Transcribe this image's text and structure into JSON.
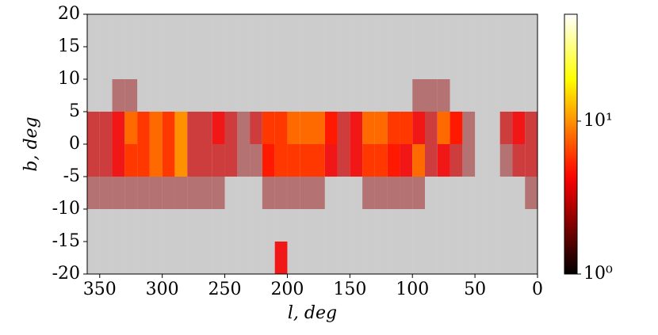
{
  "chart_data": {
    "type": "hist2d",
    "xlabel": "l, deg",
    "ylabel": "b, deg",
    "xlim": [
      360,
      0
    ],
    "ylim": [
      -20,
      20
    ],
    "xticks": [
      350,
      300,
      250,
      200,
      150,
      100,
      50,
      0
    ],
    "yticks": [
      20,
      15,
      10,
      5,
      0,
      -5,
      -10,
      -15,
      -20
    ],
    "xbins": [
      360,
      350,
      340,
      330,
      320,
      310,
      300,
      290,
      280,
      270,
      260,
      250,
      240,
      230,
      220,
      210,
      200,
      190,
      180,
      170,
      160,
      150,
      140,
      130,
      120,
      110,
      100,
      90,
      80,
      70,
      60,
      50,
      40,
      30,
      20,
      10,
      0
    ],
    "ybins": [
      20,
      15,
      10,
      5,
      0,
      -5,
      -10,
      -15,
      -20
    ],
    "counts": [
      [
        1,
        1,
        1,
        1,
        1,
        1,
        1,
        1,
        1,
        1,
        1,
        1,
        1,
        1,
        1,
        1,
        1,
        1,
        1,
        1,
        1,
        1,
        1,
        1,
        1,
        1,
        1,
        1,
        1,
        1,
        1,
        1,
        1,
        1,
        1,
        1
      ],
      [
        1,
        1,
        1,
        1,
        1,
        1,
        1,
        1,
        1,
        1,
        1,
        1,
        1,
        1,
        1,
        1,
        1,
        1,
        1,
        1,
        1,
        1,
        1,
        1,
        1,
        1,
        1,
        1,
        1,
        1,
        1,
        1,
        1,
        1,
        1,
        1
      ],
      [
        1,
        1,
        2,
        2,
        1,
        1,
        1,
        1,
        1,
        1,
        1,
        1,
        1,
        1,
        1,
        1,
        1,
        1,
        1,
        1,
        1,
        1,
        1,
        1,
        1,
        1,
        2,
        2,
        2,
        1,
        1,
        1,
        1,
        1,
        1,
        1
      ],
      [
        3,
        3,
        4,
        8,
        6,
        8,
        6,
        10,
        3,
        3,
        4,
        3,
        2,
        3,
        6,
        6,
        8,
        8,
        8,
        5,
        3,
        4,
        8,
        8,
        6,
        6,
        4,
        3,
        8,
        5,
        2,
        1,
        1,
        3,
        4,
        3
      ],
      [
        3,
        3,
        4,
        6,
        6,
        8,
        6,
        10,
        3,
        3,
        3,
        3,
        2,
        2,
        5,
        6,
        6,
        6,
        6,
        4,
        3,
        4,
        6,
        6,
        5,
        4,
        8,
        3,
        4,
        3,
        2,
        1,
        1,
        2,
        3,
        3
      ],
      [
        2,
        2,
        2,
        2,
        2,
        2,
        2,
        2,
        2,
        2,
        2,
        1,
        1,
        1,
        2,
        2,
        2,
        2,
        2,
        1,
        1,
        1,
        2,
        2,
        2,
        2,
        2,
        1,
        1,
        1,
        1,
        1,
        1,
        1,
        1,
        2
      ],
      [
        1,
        1,
        1,
        1,
        1,
        1,
        1,
        1,
        1,
        1,
        1,
        1,
        1,
        1,
        1,
        1,
        1,
        1,
        1,
        1,
        1,
        1,
        1,
        1,
        1,
        1,
        1,
        1,
        1,
        1,
        1,
        1,
        1,
        1,
        1,
        1
      ],
      [
        1,
        1,
        1,
        1,
        1,
        1,
        1,
        1,
        1,
        1,
        1,
        1,
        1,
        1,
        1,
        4,
        1,
        1,
        1,
        1,
        1,
        1,
        1,
        1,
        1,
        1,
        1,
        1,
        1,
        1,
        1,
        1,
        1,
        1,
        1,
        1
      ]
    ],
    "colormap": "hot",
    "log_color": true,
    "zlim": [
      1,
      50
    ],
    "zticks": [
      {
        "value": 1,
        "label": "10⁰"
      },
      {
        "value": 10,
        "label": "10¹"
      }
    ]
  }
}
